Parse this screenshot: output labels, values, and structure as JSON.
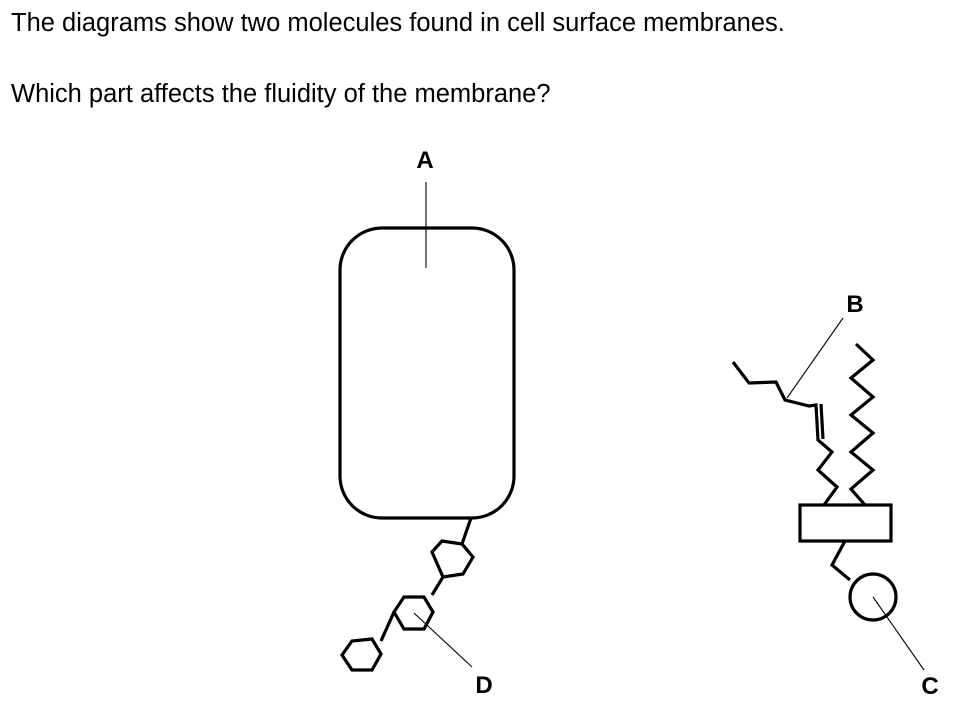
{
  "question": {
    "line1": "The diagrams show two molecules found in cell surface membranes.",
    "line2": "Which part affects the fluidity of the membrane?"
  },
  "labels": {
    "a": "A",
    "b": "B",
    "c": "C",
    "d": "D"
  }
}
